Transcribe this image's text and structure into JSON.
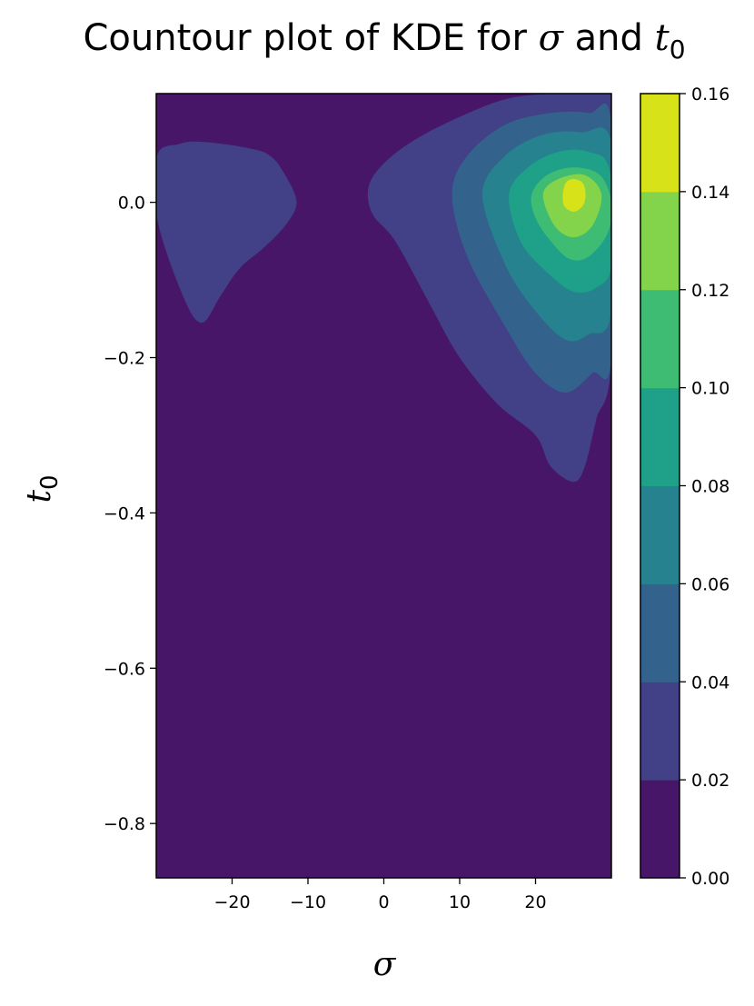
{
  "chart_data": {
    "type": "contour",
    "title": {
      "prefix": "Countour plot of KDE for ",
      "symbol_1": "σ",
      "middle": " and ",
      "symbol_2": "t",
      "symbol_2_subscript": "0"
    },
    "xlabel": "σ",
    "ylabel": {
      "symbol": "t",
      "subscript": "0"
    },
    "xlim": [
      -30,
      30
    ],
    "ylim": [
      -0.87,
      0.14
    ],
    "xticks": [
      -20,
      -10,
      0,
      10,
      20
    ],
    "xtick_labels": [
      "−20",
      "−10",
      "0",
      "10",
      "20"
    ],
    "yticks": [
      0.0,
      -0.2,
      -0.4,
      -0.6,
      -0.8
    ],
    "ytick_labels": [
      "0.0",
      "−0.2",
      "−0.4",
      "−0.6",
      "−0.8"
    ],
    "colorbar": {
      "levels": [
        0.0,
        0.02,
        0.04,
        0.06,
        0.08,
        0.1,
        0.12,
        0.14,
        0.16
      ],
      "tick_labels": [
        "0.00",
        "0.02",
        "0.04",
        "0.06",
        "0.08",
        "0.10",
        "0.12",
        "0.14",
        "0.16"
      ],
      "colors": [
        "#481668",
        "#424086",
        "#33638d",
        "#26828e",
        "#1fa088",
        "#3fbc73",
        "#84d44b",
        "#d8e219"
      ]
    },
    "grid": false,
    "peaks": [
      {
        "sigma": 25,
        "t0": 0.01,
        "max_density": 0.16
      },
      {
        "sigma": -21,
        "t0": -0.02,
        "max_density": 0.04
      }
    ],
    "regions": [
      {
        "level": 1,
        "points": [
          [
            -29.9,
            0.06
          ],
          [
            -27,
            0.075
          ],
          [
            -24,
            0.078
          ],
          [
            -18,
            0.07
          ],
          [
            -15,
            0.06
          ],
          [
            -13,
            0.035
          ],
          [
            -11.5,
            0.0
          ],
          [
            -13,
            -0.03
          ],
          [
            -16,
            -0.06
          ],
          [
            -19,
            -0.085
          ],
          [
            -21.5,
            -0.12
          ],
          [
            -24,
            -0.155
          ],
          [
            -26.5,
            -0.12
          ],
          [
            -29.9,
            -0.02
          ]
        ]
      },
      {
        "level": 1,
        "points": [
          [
            -2,
            0.02
          ],
          [
            0,
            0.05
          ],
          [
            4,
            0.08
          ],
          [
            10,
            0.11
          ],
          [
            17,
            0.135
          ],
          [
            25,
            0.14
          ],
          [
            30,
            0.14
          ],
          [
            30,
            -0.2
          ],
          [
            28,
            -0.28
          ],
          [
            26.5,
            -0.34
          ],
          [
            25,
            -0.36
          ],
          [
            22,
            -0.34
          ],
          [
            20,
            -0.3
          ],
          [
            15,
            -0.26
          ],
          [
            10,
            -0.2
          ],
          [
            6,
            -0.13
          ],
          [
            1.5,
            -0.05
          ],
          [
            -1.5,
            -0.015
          ]
        ]
      },
      {
        "level": 2,
        "points": [
          [
            9,
            0.01
          ],
          [
            11,
            0.06
          ],
          [
            16,
            0.1
          ],
          [
            22,
            0.115
          ],
          [
            27,
            0.115
          ],
          [
            30,
            0.1
          ],
          [
            30,
            -0.2
          ],
          [
            27.5,
            -0.22
          ],
          [
            24,
            -0.245
          ],
          [
            20,
            -0.22
          ],
          [
            16,
            -0.16
          ],
          [
            11,
            -0.07
          ]
        ]
      },
      {
        "level": 3,
        "points": [
          [
            13,
            0.01
          ],
          [
            16,
            0.06
          ],
          [
            21,
            0.087
          ],
          [
            26,
            0.09
          ],
          [
            30,
            0.075
          ],
          [
            30,
            -0.14
          ],
          [
            27,
            -0.17
          ],
          [
            24,
            -0.177
          ],
          [
            20,
            -0.14
          ],
          [
            16,
            -0.08
          ]
        ]
      },
      {
        "level": 4,
        "points": [
          [
            16.5,
            0.01
          ],
          [
            19,
            0.045
          ],
          [
            23,
            0.065
          ],
          [
            27,
            0.065
          ],
          [
            29.8,
            0.04
          ],
          [
            30,
            -0.08
          ],
          [
            28,
            -0.11
          ],
          [
            25,
            -0.115
          ],
          [
            21.5,
            -0.09
          ],
          [
            18,
            -0.05
          ]
        ]
      },
      {
        "level": 5,
        "points": [
          [
            19.5,
            0.01
          ],
          [
            21.5,
            0.035
          ],
          [
            25,
            0.045
          ],
          [
            28.5,
            0.035
          ],
          [
            30,
            0.0
          ],
          [
            29.5,
            -0.04
          ],
          [
            27,
            -0.07
          ],
          [
            24.5,
            -0.073
          ],
          [
            22,
            -0.05
          ],
          [
            20,
            -0.02
          ]
        ]
      },
      {
        "level": 6,
        "points": [
          [
            21,
            0.01
          ],
          [
            23,
            0.03
          ],
          [
            26.5,
            0.035
          ],
          [
            28.7,
            0.01
          ],
          [
            27.5,
            -0.03
          ],
          [
            25,
            -0.045
          ],
          [
            22.5,
            -0.03
          ]
        ]
      },
      {
        "level": 7,
        "points": [
          [
            23.6,
            0.01
          ],
          [
            24,
            0.025
          ],
          [
            25,
            0.03
          ],
          [
            26.2,
            0.025
          ],
          [
            26.6,
            0.01
          ],
          [
            26.2,
            -0.005
          ],
          [
            25,
            -0.012
          ],
          [
            23.8,
            -0.005
          ]
        ]
      }
    ]
  }
}
